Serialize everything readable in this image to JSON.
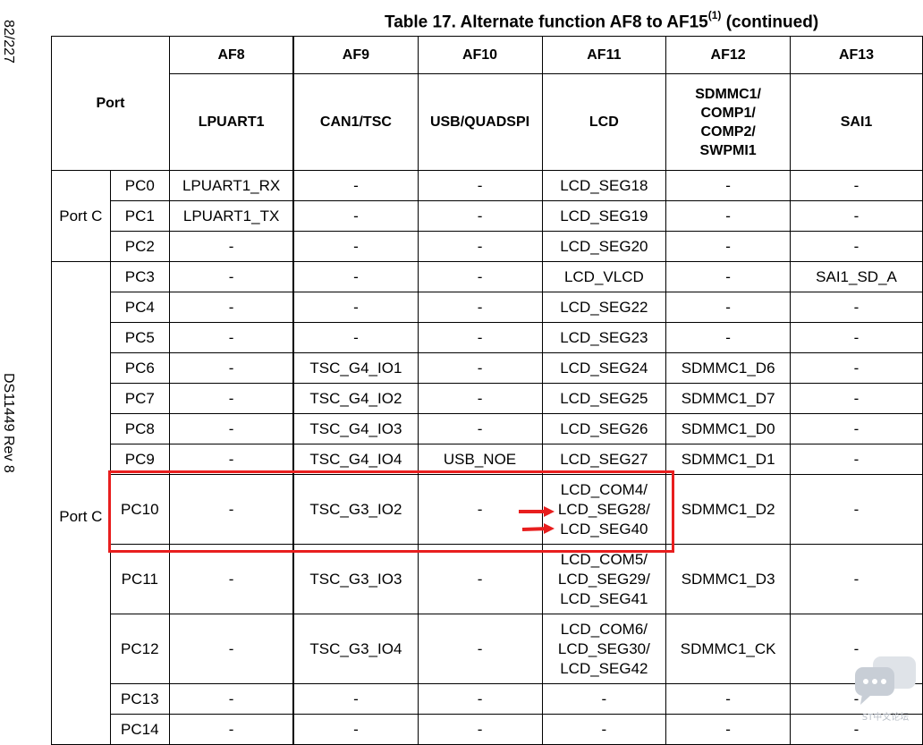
{
  "side": {
    "page_number": "82/227",
    "doc_id": "DS11449 Rev 8"
  },
  "title": {
    "text": "Table 17. Alternate function AF8 to AF15",
    "note_ref": "(1)",
    "suffix": " (continued)"
  },
  "header": {
    "port": "Port",
    "af": [
      "AF8",
      "AF9",
      "AF10",
      "AF11",
      "AF12",
      "AF13"
    ],
    "func": [
      "LPUART1",
      "CAN1/TSC",
      "USB/QUADSPI",
      "LCD",
      "SDMMC1/\nCOMP1/\nCOMP2/\nSWPMI1",
      "SAI1"
    ]
  },
  "groups": [
    {
      "port": "Port C",
      "rows": [
        {
          "pin": "PC0",
          "cells": [
            "LPUART1_RX",
            "-",
            "-",
            "LCD_SEG18",
            "-",
            "-"
          ]
        },
        {
          "pin": "PC1",
          "cells": [
            "LPUART1_TX",
            "-",
            "-",
            "LCD_SEG19",
            "-",
            "-"
          ]
        },
        {
          "pin": "PC2",
          "cells": [
            "-",
            "-",
            "-",
            "LCD_SEG20",
            "-",
            "-"
          ]
        }
      ]
    },
    {
      "port": "Port C",
      "rows": [
        {
          "pin": "PC3",
          "cells": [
            "-",
            "-",
            "-",
            "LCD_VLCD",
            "-",
            "SAI1_SD_A"
          ]
        },
        {
          "pin": "PC4",
          "cells": [
            "-",
            "-",
            "-",
            "LCD_SEG22",
            "-",
            "-"
          ]
        },
        {
          "pin": "PC5",
          "cells": [
            "-",
            "-",
            "-",
            "LCD_SEG23",
            "-",
            "-"
          ]
        },
        {
          "pin": "PC6",
          "cells": [
            "-",
            "TSC_G4_IO1",
            "-",
            "LCD_SEG24",
            "SDMMC1_D6",
            "-"
          ]
        },
        {
          "pin": "PC7",
          "cells": [
            "-",
            "TSC_G4_IO2",
            "-",
            "LCD_SEG25",
            "SDMMC1_D7",
            "-"
          ]
        },
        {
          "pin": "PC8",
          "cells": [
            "-",
            "TSC_G4_IO3",
            "-",
            "LCD_SEG26",
            "SDMMC1_D0",
            "-"
          ]
        },
        {
          "pin": "PC9",
          "cells": [
            "-",
            "TSC_G4_IO4",
            "USB_NOE",
            "LCD_SEG27",
            "SDMMC1_D1",
            "-"
          ]
        },
        {
          "pin": "PC10",
          "cells": [
            "-",
            "TSC_G3_IO2",
            "-",
            "LCD_COM4/\nLCD_SEG28/\nLCD_SEG40",
            "SDMMC1_D2",
            "-"
          ]
        },
        {
          "pin": "PC11",
          "cells": [
            "-",
            "TSC_G3_IO3",
            "-",
            "LCD_COM5/\nLCD_SEG29/\nLCD_SEG41",
            "SDMMC1_D3",
            "-"
          ]
        },
        {
          "pin": "PC12",
          "cells": [
            "-",
            "TSC_G3_IO4",
            "-",
            "LCD_COM6/\nLCD_SEG30/\nLCD_SEG42",
            "SDMMC1_CK",
            "-"
          ]
        },
        {
          "pin": "PC13",
          "cells": [
            "-",
            "-",
            "-",
            "-",
            "-",
            "-"
          ]
        },
        {
          "pin": "PC14",
          "cells": [
            "-",
            "-",
            "-",
            "-",
            "-",
            "-"
          ]
        }
      ]
    }
  ],
  "annotation": {
    "highlight_color": "#e81e1e"
  },
  "badge": {
    "label": "ST中文论坛",
    "icon": "chat-bubbles-icon"
  }
}
